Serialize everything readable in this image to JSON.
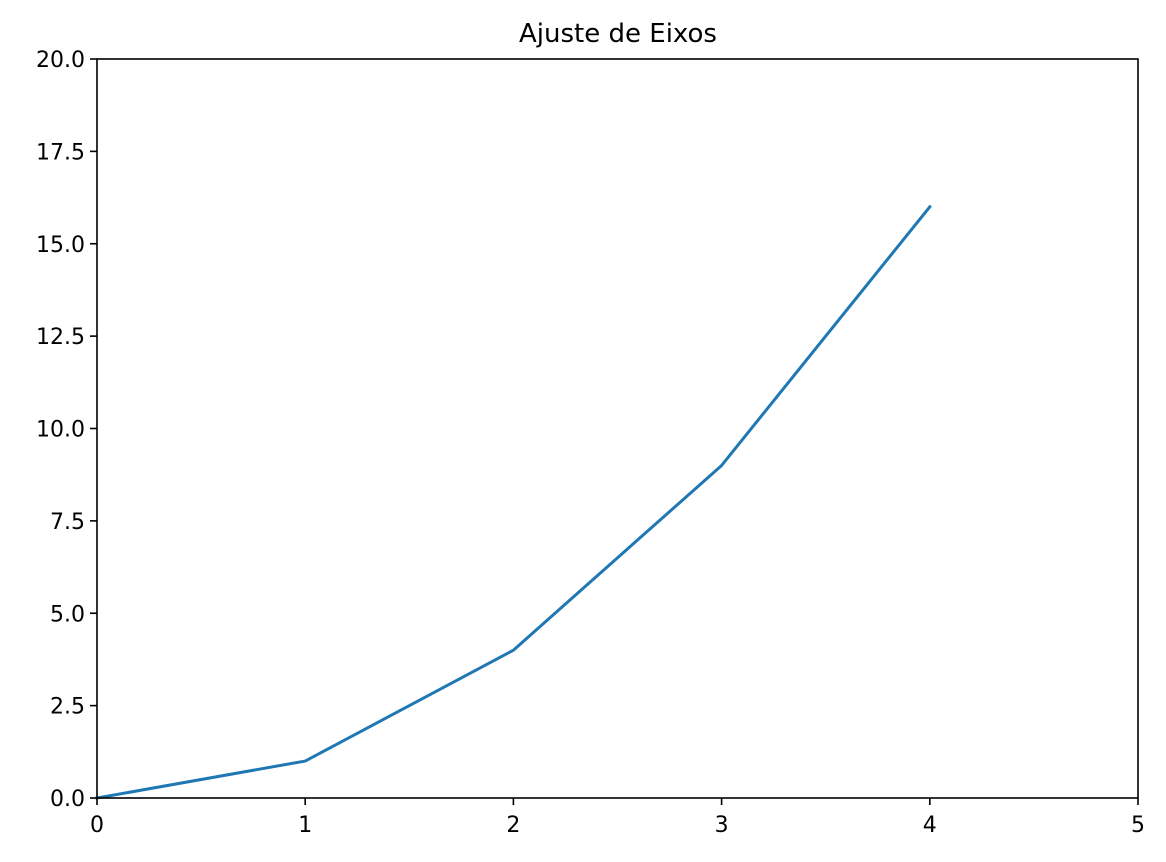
{
  "chart_data": {
    "type": "line",
    "title": "Ajuste de Eixos",
    "xlabel": "",
    "ylabel": "",
    "xlim": [
      0,
      5
    ],
    "ylim": [
      0,
      20
    ],
    "xticks": [
      0,
      1,
      2,
      3,
      4,
      5
    ],
    "xtick_labels": [
      "0",
      "1",
      "2",
      "3",
      "4",
      "5"
    ],
    "yticks": [
      0,
      2.5,
      5,
      7.5,
      10,
      12.5,
      15,
      17.5,
      20
    ],
    "ytick_labels": [
      "0.0",
      "2.5",
      "5.0",
      "7.5",
      "10.0",
      "12.5",
      "15.0",
      "17.5",
      "20.0"
    ],
    "grid": false,
    "legend": "none",
    "series": [
      {
        "color": "#1f77b4",
        "x": [
          0,
          1,
          2,
          3,
          4
        ],
        "y": [
          0,
          1,
          4,
          9,
          16
        ]
      }
    ]
  }
}
